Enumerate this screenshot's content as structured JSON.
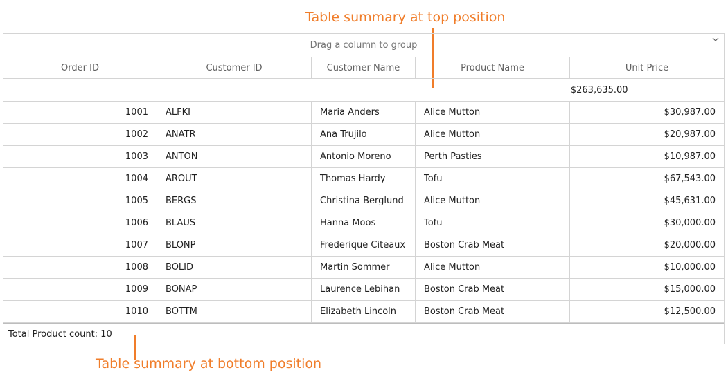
{
  "annotations": {
    "top": "Table summary at top position",
    "bottom": "Table summary at bottom position"
  },
  "grid": {
    "group_drop_text": "Drag a column to group",
    "group_toggle_icon": "chevron-down-icon",
    "columns": [
      "Order ID",
      "Customer ID",
      "Customer Name",
      "Product Name",
      "Unit Price"
    ],
    "top_summary": "$263,635.00",
    "rows": [
      [
        "1001",
        "ALFKI",
        "Maria Anders",
        "Alice Mutton",
        "$30,987.00"
      ],
      [
        "1002",
        "ANATR",
        "Ana Trujilo",
        "Alice Mutton",
        "$20,987.00"
      ],
      [
        "1003",
        "ANTON",
        "Antonio Moreno",
        "Perth Pasties",
        "$10,987.00"
      ],
      [
        "1004",
        "AROUT",
        "Thomas Hardy",
        "Tofu",
        "$67,543.00"
      ],
      [
        "1005",
        "BERGS",
        "Christina Berglund",
        "Alice Mutton",
        "$45,631.00"
      ],
      [
        "1006",
        "BLAUS",
        "Hanna Moos",
        "Tofu",
        "$30,000.00"
      ],
      [
        "1007",
        "BLONP",
        "Frederique Citeaux",
        "Boston Crab Meat",
        "$20,000.00"
      ],
      [
        "1008",
        "BOLID",
        "Martin Sommer",
        "Alice Mutton",
        "$10,000.00"
      ],
      [
        "1009",
        "BONAP",
        "Laurence Lebihan",
        "Boston Crab Meat",
        "$15,000.00"
      ],
      [
        "1010",
        "BOTTM",
        "Elizabeth Lincoln",
        "Boston Crab Meat",
        "$12,500.00"
      ]
    ],
    "bottom_summary": "Total Product count: 10"
  },
  "colors": {
    "accent": "#f07d2a",
    "border": "#d4d4d4"
  }
}
